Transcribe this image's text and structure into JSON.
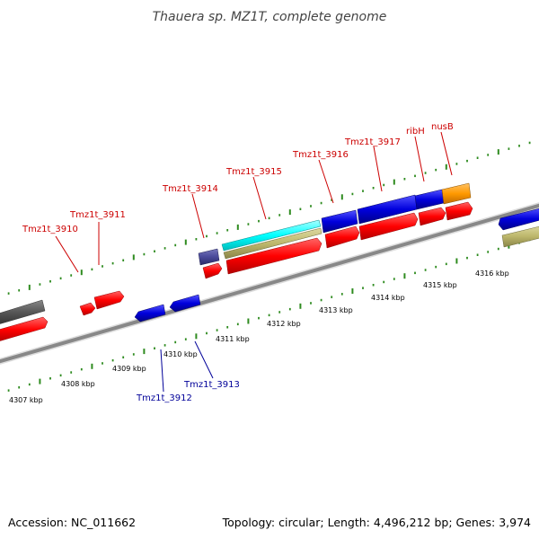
{
  "title": "Thauera sp. MZ1T, complete genome",
  "footer": {
    "accession": "Accession: NC_011662",
    "summary": "Topology: circular; Length: 4,496,212 bp; Genes: 3,974"
  },
  "colors": {
    "backbone": "#888888",
    "tick": "#2e8b1f",
    "label_top": "#cc0000",
    "label_bottom": "#000099",
    "gene_red": "#ff0000",
    "gene_blue": "#0000dd",
    "gene_gray": "#555555",
    "gene_navy": "#4a4a9a",
    "gene_cyan": "#00ffff",
    "gene_khaki": "#bdb76b",
    "gene_orange": "#ff9900"
  },
  "scale_labels": [
    "4307 kbp",
    "4308 kbp",
    "4309 kbp",
    "4310 kbp",
    "4311 kbp",
    "4312 kbp",
    "4313 kbp",
    "4314 kbp",
    "4315 kbp",
    "4316 kbp"
  ],
  "gene_labels_top": [
    "Tmz1t_3910",
    "Tmz1t_3911",
    "Tmz1t_3914",
    "Tmz1t_3915",
    "Tmz1t_3916",
    "Tmz1t_3917",
    "ribH",
    "nusB"
  ],
  "gene_labels_bottom": [
    "Tmz1t_3912",
    "Tmz1t_3913"
  ]
}
